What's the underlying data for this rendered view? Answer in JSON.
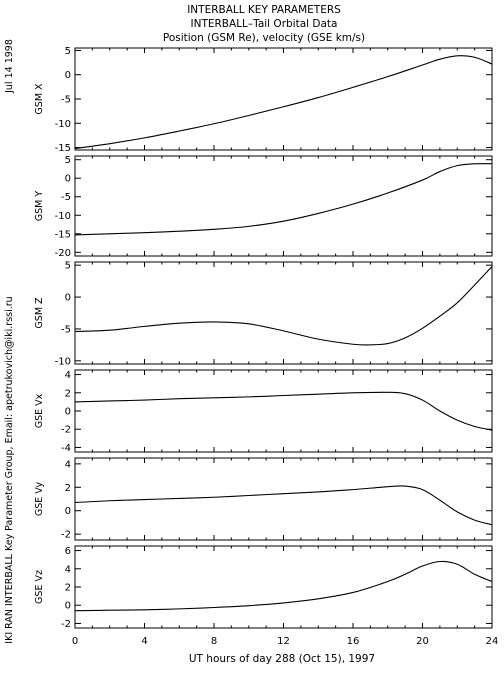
{
  "side_labels": {
    "date": "Jul 14 1998",
    "credit": "IKI RAN INTERBALL Key Parameter Group, Email: apetrukovich@iki.rssi.ru"
  },
  "chart_data": {
    "type": "line",
    "title": "INTERBALL KEY PARAMETERS",
    "subtitle": "INTERBALL–Tail Orbital Data",
    "subtitle2": "Position (GSM Re), velocity (GSE km/s)",
    "xlabel": "UT hours of day 288 (Oct 15), 1997",
    "xlim": [
      0,
      24
    ],
    "xticks": [
      0,
      4,
      8,
      12,
      16,
      20,
      24
    ],
    "panels": [
      {
        "ylabel": "GSM X",
        "ylim": [
          -15.5,
          5.5
        ],
        "yticks": [
          -15,
          -10,
          -5,
          0,
          5
        ],
        "x": [
          0,
          2,
          4,
          6,
          8,
          10,
          12,
          14,
          16,
          18,
          20,
          21,
          22,
          23,
          24
        ],
        "y": [
          -15.2,
          -14.2,
          -13.0,
          -11.6,
          -10.1,
          -8.4,
          -6.6,
          -4.7,
          -2.6,
          -0.4,
          2.0,
          3.2,
          3.9,
          3.6,
          2.2
        ]
      },
      {
        "ylabel": "GSM Y",
        "ylim": [
          -21,
          6
        ],
        "yticks": [
          -20,
          -15,
          -10,
          -5,
          0,
          5
        ],
        "x": [
          0,
          2,
          4,
          6,
          8,
          10,
          12,
          14,
          16,
          18,
          20,
          21,
          22,
          23,
          24
        ],
        "y": [
          -15.3,
          -15.0,
          -14.7,
          -14.3,
          -13.8,
          -13.0,
          -11.6,
          -9.5,
          -7.0,
          -4.0,
          -0.5,
          1.8,
          3.4,
          3.9,
          3.9
        ]
      },
      {
        "ylabel": "GSM Z",
        "ylim": [
          -10.5,
          5.5
        ],
        "yticks": [
          -10,
          -5,
          0,
          5
        ],
        "x": [
          0,
          2,
          4,
          6,
          8,
          10,
          12,
          14,
          16,
          17,
          18,
          19,
          20,
          21,
          22,
          23,
          24
        ],
        "y": [
          -5.4,
          -5.2,
          -4.6,
          -4.1,
          -3.9,
          -4.2,
          -5.3,
          -6.6,
          -7.4,
          -7.5,
          -7.3,
          -6.4,
          -4.9,
          -3.0,
          -0.9,
          1.9,
          4.8
        ]
      },
      {
        "ylabel": "GSE Vx",
        "ylim": [
          -4.5,
          4.5
        ],
        "yticks": [
          -4,
          -2,
          0,
          2,
          4
        ],
        "x": [
          0,
          2,
          4,
          6,
          8,
          10,
          12,
          14,
          16,
          18,
          19,
          20,
          21,
          22,
          23,
          24
        ],
        "y": [
          1.0,
          1.1,
          1.2,
          1.35,
          1.45,
          1.55,
          1.7,
          1.85,
          2.0,
          2.05,
          1.9,
          1.2,
          0.0,
          -1.0,
          -1.7,
          -2.1
        ]
      },
      {
        "ylabel": "GSE Vy",
        "ylim": [
          -2.5,
          4.5
        ],
        "yticks": [
          -2,
          0,
          2,
          4
        ],
        "x": [
          0,
          2,
          4,
          6,
          8,
          10,
          12,
          14,
          16,
          18,
          19,
          20,
          21,
          22,
          23,
          24
        ],
        "y": [
          0.7,
          0.85,
          0.95,
          1.05,
          1.15,
          1.3,
          1.45,
          1.6,
          1.8,
          2.05,
          2.1,
          1.8,
          0.9,
          -0.1,
          -0.8,
          -1.2
        ]
      },
      {
        "ylabel": "GSE Vz",
        "ylim": [
          -2.5,
          6.5
        ],
        "yticks": [
          -2,
          0,
          2,
          4,
          6
        ],
        "x": [
          0,
          2,
          4,
          6,
          8,
          10,
          12,
          14,
          16,
          18,
          19,
          20,
          21,
          22,
          23,
          24
        ],
        "y": [
          -0.6,
          -0.55,
          -0.5,
          -0.4,
          -0.25,
          -0.05,
          0.25,
          0.7,
          1.4,
          2.6,
          3.4,
          4.3,
          4.8,
          4.5,
          3.4,
          2.6
        ]
      }
    ]
  }
}
